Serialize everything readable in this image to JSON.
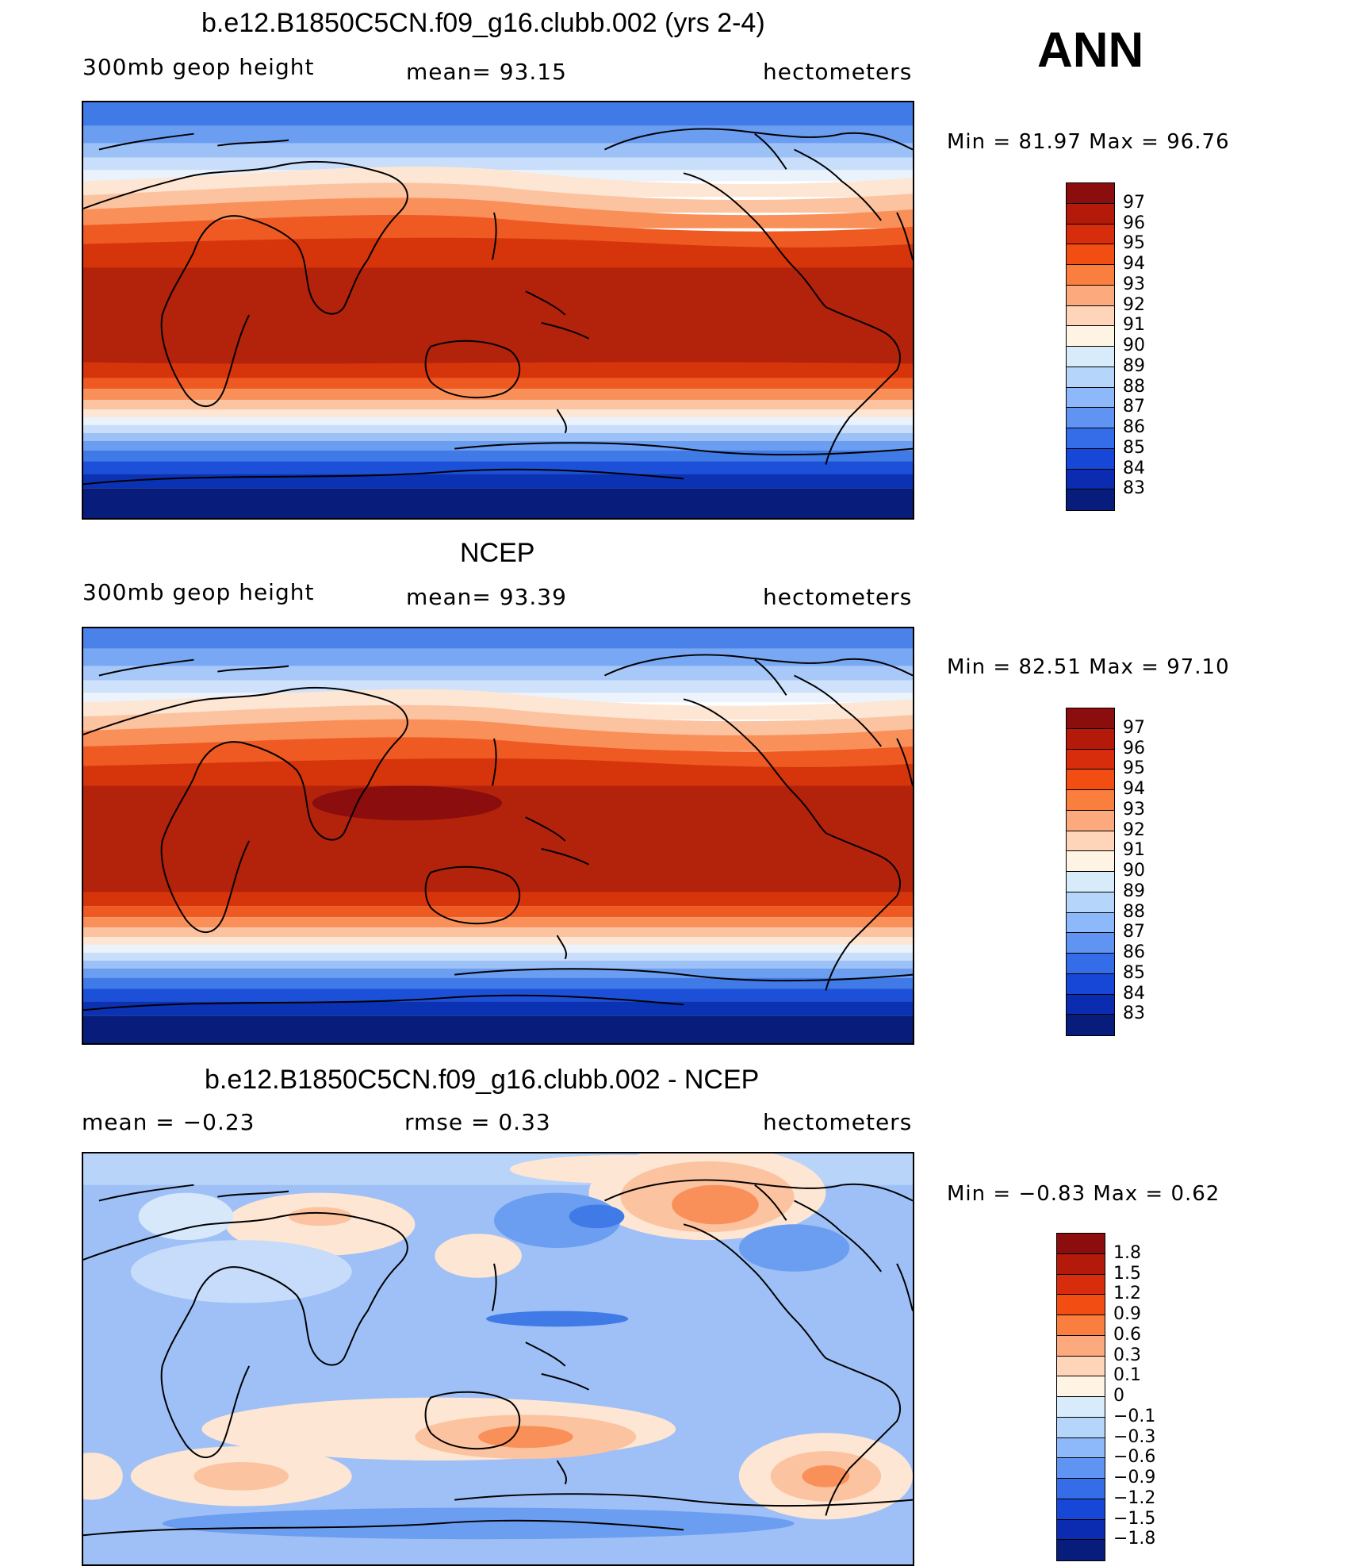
{
  "season": "ANN",
  "panels": [
    {
      "title": "b.e12.B1850C5CN.f09_g16.clubb.002 (yrs 2-4)",
      "left": "300mb  geop  height",
      "center": "mean=   93.15",
      "right": "hectometers",
      "minmax": "Min  =    81.97  Max  =    96.76",
      "colorbar": {
        "labels": [
          "97",
          "96",
          "95",
          "94",
          "93",
          "92",
          "91",
          "90",
          "89",
          "88",
          "87",
          "86",
          "85",
          "84",
          "83"
        ],
        "colors": [
          "#8b0d0d",
          "#b31a0a",
          "#d82d0c",
          "#f24d12",
          "#fa7e3e",
          "#fcaa7d",
          "#fed5b8",
          "#fff3e4",
          "#d8ebfb",
          "#b6d5fa",
          "#8db8f9",
          "#5f94f3",
          "#356de8",
          "#1747d6",
          "#0b2cb0",
          "#081d7b"
        ]
      },
      "map": {
        "field": "model",
        "projection": "cylindrical equidistant",
        "centered": "150E"
      }
    },
    {
      "title": "NCEP",
      "left": "300mb  geop  height",
      "center": "mean=   93.39",
      "right": "hectometers",
      "minmax": "Min  =    82.51  Max  =    97.10",
      "colorbar": {
        "labels": [
          "97",
          "96",
          "95",
          "94",
          "93",
          "92",
          "91",
          "90",
          "89",
          "88",
          "87",
          "86",
          "85",
          "84",
          "83"
        ],
        "colors": [
          "#8b0d0d",
          "#b31a0a",
          "#d82d0c",
          "#f24d12",
          "#fa7e3e",
          "#fcaa7d",
          "#fed5b8",
          "#fff3e4",
          "#d8ebfb",
          "#b6d5fa",
          "#8db8f9",
          "#5f94f3",
          "#356de8",
          "#1747d6",
          "#0b2cb0",
          "#081d7b"
        ]
      },
      "map": {
        "field": "observation",
        "projection": "cylindrical equidistant",
        "centered": "150E"
      }
    },
    {
      "title": "b.e12.B1850C5CN.f09_g16.clubb.002 - NCEP",
      "left": "mean  =    −0.23",
      "center": "rmse  =     0.33",
      "right": "hectometers",
      "minmax": "Min  =   −0.83  Max  =      0.62",
      "colorbar": {
        "labels": [
          "1.8",
          "1.5",
          "1.2",
          "0.9",
          "0.6",
          "0.3",
          "0.1",
          "0",
          "−0.1",
          "−0.3",
          "−0.6",
          "−0.9",
          "−1.2",
          "−1.5",
          "−1.8"
        ],
        "colors": [
          "#8b0d0d",
          "#b31a0a",
          "#d82d0c",
          "#f24d12",
          "#fa7e3e",
          "#fcaa7d",
          "#fed5b8",
          "#fff3e4",
          "#d8ebfb",
          "#b6d5fa",
          "#8db8f9",
          "#5f94f3",
          "#356de8",
          "#1747d6",
          "#0b2cb0",
          "#081d7b"
        ]
      },
      "map": {
        "field": "difference",
        "projection": "cylindrical equidistant",
        "centered": "150E"
      }
    }
  ]
}
